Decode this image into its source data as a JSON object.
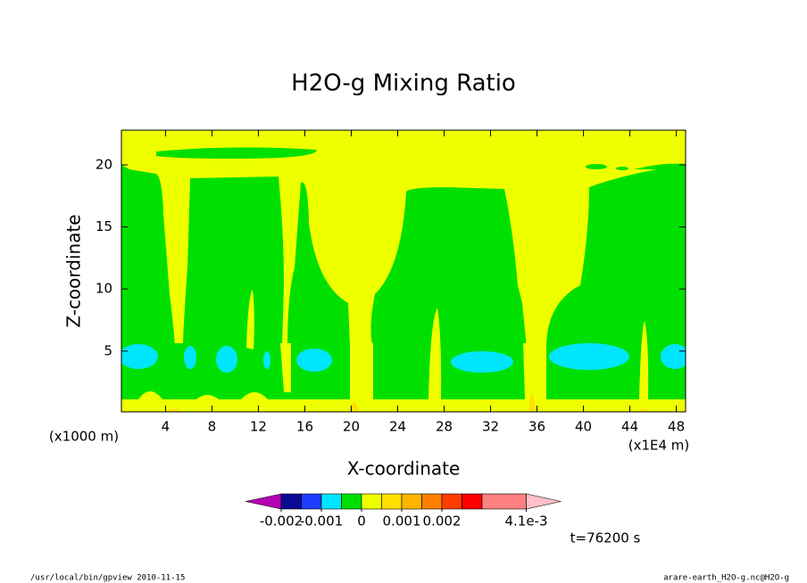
{
  "chart_data": {
    "type": "contour",
    "title": "H2O-g Mixing Ratio",
    "xlabel": "X-coordinate",
    "ylabel": "Z-coordinate",
    "x_unit_left": "(x1000 m)",
    "x_unit_right": "(x1E4 m)",
    "xlim": [
      0.2,
      48.8
    ],
    "xticks": [
      4,
      8,
      12,
      16,
      20,
      24,
      28,
      32,
      36,
      40,
      44,
      48
    ],
    "ylim": [
      0.1,
      22.8
    ],
    "yticks": [
      5,
      10,
      15,
      20
    ],
    "colorbar": {
      "levels": [
        -0.002,
        -0.0015,
        -0.001,
        -0.0005,
        0,
        0.0005,
        0.001,
        0.0015,
        0.002,
        0.0025,
        0.003,
        0.0041
      ],
      "colors": [
        "#0a0a96",
        "#1e3cff",
        "#00e6ff",
        "#00e000",
        "#eeff00",
        "#ffe000",
        "#ffb400",
        "#ff8000",
        "#ff3c00",
        "#ff0000",
        "#ff8080"
      ],
      "under_color": "#b400b4",
      "over_color": "#ffc0c8",
      "ticks": [
        -0.002,
        -0.001,
        0,
        0.001,
        0.002,
        {
          "value": 0.0041,
          "label": "4.1e-3"
        }
      ]
    },
    "time_label": "t=76200 s",
    "footer_left": "/usr/local/bin/gpview  2010-11-15",
    "footer_right": "arare-earth_H2O-g.nc@H2O-g"
  }
}
